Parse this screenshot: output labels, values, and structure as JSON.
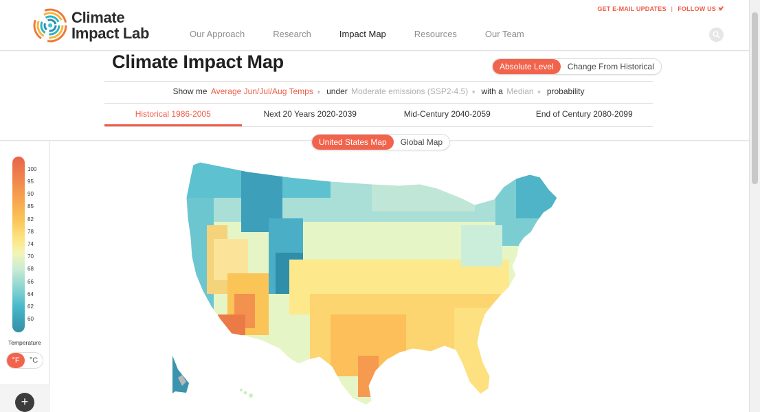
{
  "header": {
    "logo_line1": "Climate",
    "logo_line2": "Impact Lab",
    "nav": [
      "Our Approach",
      "Research",
      "Impact Map",
      "Resources",
      "Our Team"
    ],
    "active_nav": "Impact Map",
    "email_link": "GET E-MAIL UPDATES",
    "separator": "|",
    "follow_link": "FOLLOW US"
  },
  "panel": {
    "title": "Climate Impact Map",
    "level_toggle": {
      "absolute": "Absolute Level",
      "change": "Change From Historical"
    },
    "show_me": "Show me",
    "metric": "Average Jun/Jul/Aug Temps",
    "under": "under",
    "scenario": "Moderate emissions (SSP2-4.5)",
    "with_a": "with a",
    "probability_value": "Median",
    "probability": "probability",
    "periods": [
      "Historical 1986-2005",
      "Next 20 Years 2020-2039",
      "Mid-Century 2040-2059",
      "End of Century 2080-2099"
    ]
  },
  "map": {
    "toggle": {
      "us": "United States Map",
      "global": "Global Map"
    }
  },
  "legend": {
    "labels": [
      "100",
      "95",
      "90",
      "85",
      "82",
      "78",
      "74",
      "70",
      "68",
      "66",
      "64",
      "62",
      "60"
    ],
    "title": "Temperature",
    "unit_f": "°F",
    "unit_c": "°C",
    "zoom": "+"
  },
  "colors": {
    "accent": "#f2634c",
    "hot": "#e8654a",
    "warm": "#fbc457",
    "mild": "#f2f5b7",
    "cool": "#8ed6d1",
    "cold": "#3a8ea7"
  }
}
